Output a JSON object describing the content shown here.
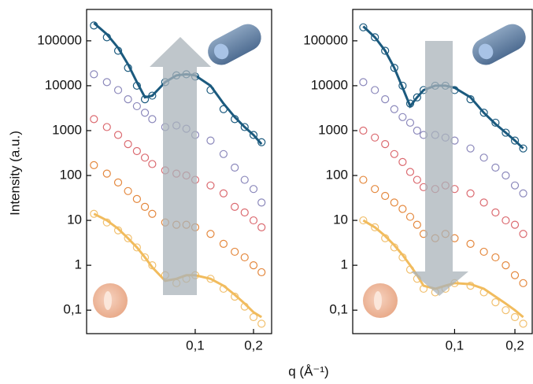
{
  "chart_data": [
    {
      "type": "scatter",
      "ylabel": "Intensity (a.u.)",
      "xlabel": "q (Å⁻¹)",
      "xscale": "log",
      "yscale": "log",
      "xlim": [
        0.0275,
        0.248
      ],
      "ylim": [
        0.03,
        500000
      ],
      "xticks": [
        {
          "value": 0.1,
          "label": "0,1"
        },
        {
          "value": 0.2,
          "label": "0,2"
        }
      ],
      "yticks": [
        {
          "value": 0.1,
          "label": "0,1"
        },
        1,
        10,
        100,
        1000,
        10000,
        100000
      ],
      "x": [
        0.03,
        0.035,
        0.04,
        0.045,
        0.05,
        0.055,
        0.06,
        0.07,
        0.08,
        0.09,
        0.1,
        0.12,
        0.14,
        0.16,
        0.18,
        0.2,
        0.22
      ],
      "series": [
        {
          "style": "markers",
          "color": "#1b5a7e",
          "values": [
            220000,
            120000,
            60000,
            25000,
            10000,
            5000,
            6000,
            12000,
            17000,
            18000,
            16000,
            8000,
            3000,
            1800,
            1200,
            800,
            550
          ]
        },
        {
          "style": "line",
          "color": "#1b5a7e",
          "values": [
            250000,
            140000,
            70000,
            30000,
            12000,
            5500,
            6000,
            12000,
            17000,
            18000,
            17000,
            10000,
            4000,
            2000,
            1200,
            800,
            500
          ]
        },
        {
          "style": "markers",
          "color": "#8b88bb",
          "values": [
            18000,
            12000,
            8000,
            5000,
            3500,
            2500,
            1800,
            1200,
            1300,
            1100,
            800,
            600,
            300,
            150,
            80,
            50,
            25
          ]
        },
        {
          "style": "markers",
          "color": "#db6a70",
          "values": [
            1800,
            1200,
            800,
            500,
            350,
            250,
            180,
            130,
            110,
            100,
            80,
            60,
            40,
            20,
            15,
            10,
            7
          ]
        },
        {
          "style": "markers",
          "color": "#e4883e",
          "values": [
            170,
            110,
            70,
            45,
            30,
            20,
            14,
            9,
            8,
            8,
            7,
            5,
            3,
            2,
            1.5,
            1,
            0.7
          ]
        },
        {
          "style": "markers",
          "color": "#f1c06f",
          "values": [
            14,
            9,
            6,
            4,
            2.5,
            1.5,
            1,
            0.6,
            0.4,
            0.5,
            0.6,
            0.5,
            0.3,
            0.2,
            0.12,
            0.07,
            0.05
          ]
        },
        {
          "style": "line",
          "color": "#f1bc5e",
          "values": [
            14,
            10,
            6.5,
            4,
            2.5,
            1.5,
            0.9,
            0.45,
            0.5,
            0.6,
            0.6,
            0.5,
            0.35,
            0.22,
            0.14,
            0.09,
            0.07
          ]
        }
      ]
    },
    {
      "type": "scatter",
      "xscale": "log",
      "yscale": "log",
      "xlim": [
        0.031,
        0.244
      ],
      "ylim": [
        0.03,
        500000
      ],
      "xticks": [
        {
          "value": 0.1,
          "label": "0,1"
        },
        {
          "value": 0.2,
          "label": "0,2"
        }
      ],
      "yticks": [
        {
          "value": 0.1,
          "label": "0,1"
        },
        1,
        10,
        100,
        1000,
        10000,
        100000
      ],
      "x": [
        0.035,
        0.04,
        0.045,
        0.05,
        0.055,
        0.06,
        0.065,
        0.07,
        0.08,
        0.09,
        0.1,
        0.12,
        0.14,
        0.16,
        0.18,
        0.2,
        0.22
      ],
      "series": [
        {
          "style": "markers",
          "color": "#1b5a7e",
          "values": [
            200000,
            120000,
            60000,
            25000,
            10000,
            4000,
            5500,
            8000,
            10000,
            10000,
            8000,
            5000,
            2500,
            1500,
            900,
            600,
            400
          ]
        },
        {
          "style": "line",
          "color": "#1b5a7e",
          "values": [
            210000,
            120000,
            60000,
            25000,
            9000,
            3500,
            5500,
            8000,
            10000,
            10000,
            9000,
            5500,
            2500,
            1400,
            900,
            600,
            400
          ]
        },
        {
          "style": "markers",
          "color": "#8b88bb",
          "values": [
            12000,
            8000,
            5000,
            3000,
            2000,
            1500,
            1000,
            800,
            800,
            700,
            600,
            400,
            250,
            150,
            100,
            60,
            40
          ]
        },
        {
          "style": "markers",
          "color": "#db6a70",
          "values": [
            1000,
            700,
            500,
            300,
            200,
            120,
            80,
            55,
            50,
            60,
            50,
            40,
            25,
            15,
            10,
            8,
            5
          ]
        },
        {
          "style": "markers",
          "color": "#e4883e",
          "values": [
            80,
            50,
            35,
            25,
            18,
            12,
            8,
            5,
            4,
            5,
            4,
            3,
            2,
            1.5,
            1,
            0.6,
            0.4
          ]
        },
        {
          "style": "markers",
          "color": "#f1c06f",
          "values": [
            10,
            7,
            4,
            2.5,
            1.5,
            0.8,
            0.5,
            0.3,
            0.25,
            0.3,
            0.4,
            0.35,
            0.25,
            0.15,
            0.1,
            0.07,
            0.05
          ]
        },
        {
          "style": "line",
          "color": "#f1bc5e",
          "values": [
            10,
            7,
            4.5,
            2.8,
            1.7,
            1,
            0.6,
            0.35,
            0.3,
            0.35,
            0.4,
            0.38,
            0.3,
            0.2,
            0.14,
            0.1,
            0.07
          ]
        }
      ]
    }
  ]
}
